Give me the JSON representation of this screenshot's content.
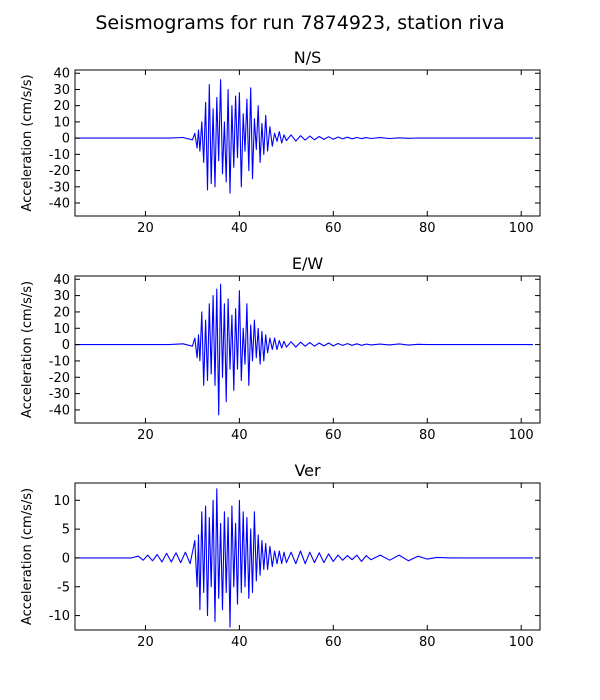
{
  "suptitle": "Seismograms for run 7874923, station riva",
  "colors": {
    "trace": "#0000ff",
    "axes": "#000000",
    "background": "#ffffff"
  },
  "chart_data": [
    {
      "type": "line",
      "title": "N/S",
      "xlabel": "",
      "ylabel": "Acceleration (cm/s/s)",
      "xlim": [
        5,
        104
      ],
      "ylim": [
        -48,
        42
      ],
      "xticks": [
        20,
        40,
        60,
        80,
        100
      ],
      "yticks": [
        -40,
        -30,
        -20,
        -10,
        0,
        10,
        20,
        30,
        40
      ],
      "grid": false,
      "series": [
        {
          "x": [
            5,
            25,
            28,
            30,
            30.5,
            31,
            31.3,
            31.6,
            32,
            32.4,
            32.8,
            33.2,
            33.6,
            34,
            34.4,
            34.8,
            35.2,
            35.6,
            36,
            36.4,
            36.8,
            37.2,
            37.6,
            38,
            38.4,
            38.8,
            39.2,
            39.6,
            40,
            40.4,
            40.8,
            41.2,
            41.6,
            42,
            42.4,
            42.8,
            43.2,
            43.6,
            44,
            44.4,
            44.8,
            45.2,
            45.6,
            46,
            46.5,
            47,
            47.5,
            48,
            48.5,
            49,
            49.5,
            50,
            51,
            52,
            53,
            54,
            55,
            56,
            57,
            58,
            59,
            60,
            61,
            62,
            63,
            64,
            65,
            66,
            67,
            68,
            70,
            72,
            74,
            76,
            78,
            80,
            85,
            90,
            95,
            102.5
          ],
          "values": [
            0,
            0,
            0.4,
            -1,
            3,
            -6,
            5,
            -8,
            10,
            -15,
            22,
            -32,
            33,
            -28,
            18,
            -30,
            25,
            -14,
            36,
            -22,
            10,
            -27,
            30,
            -34,
            20,
            -18,
            26,
            -12,
            28,
            -30,
            15,
            -8,
            24,
            -20,
            31,
            -25,
            12,
            -7,
            20,
            -15,
            9,
            -10,
            14,
            -8,
            7,
            -5,
            3,
            -2,
            4,
            -3,
            2,
            -1.5,
            2,
            -1.8,
            1.5,
            -1.2,
            1.3,
            -1,
            1,
            -0.8,
            0.9,
            -0.7,
            0.7,
            -0.5,
            0.6,
            -0.4,
            0.4,
            -0.3,
            0.3,
            -0.2,
            0.3,
            -0.2,
            0.2,
            -0.1,
            0.1,
            0,
            0,
            0,
            0,
            0
          ]
        }
      ]
    },
    {
      "type": "line",
      "title": "E/W",
      "xlabel": "",
      "ylabel": "Acceleration (cm/s/s)",
      "xlim": [
        5,
        104
      ],
      "ylim": [
        -48,
        42
      ],
      "xticks": [
        20,
        40,
        60,
        80,
        100
      ],
      "yticks": [
        -40,
        -30,
        -20,
        -10,
        0,
        10,
        20,
        30,
        40
      ],
      "grid": false,
      "series": [
        {
          "x": [
            5,
            25,
            28,
            30,
            30.5,
            31,
            31.3,
            31.6,
            32,
            32.4,
            32.8,
            33.2,
            33.6,
            34,
            34.4,
            34.8,
            35.2,
            35.6,
            36,
            36.4,
            36.8,
            37.2,
            37.6,
            38,
            38.4,
            38.8,
            39.2,
            39.6,
            40,
            40.4,
            40.8,
            41.2,
            41.6,
            42,
            42.4,
            42.8,
            43.2,
            43.6,
            44,
            44.4,
            44.8,
            45.2,
            45.6,
            46,
            46.5,
            47,
            47.5,
            48,
            48.5,
            49,
            49.5,
            50,
            51,
            52,
            53,
            54,
            55,
            56,
            57,
            58,
            59,
            60,
            61,
            62,
            63,
            64,
            65,
            66,
            67,
            68,
            70,
            72,
            74,
            76,
            78,
            80,
            85,
            90,
            95,
            102.5
          ],
          "values": [
            0,
            0,
            0.5,
            -1,
            4,
            -8,
            6,
            -10,
            20,
            -25,
            15,
            -22,
            25,
            -18,
            30,
            -25,
            34,
            -43,
            37,
            -20,
            25,
            -35,
            28,
            -15,
            18,
            -28,
            22,
            -15,
            33,
            -22,
            10,
            -12,
            25,
            -25,
            12,
            -10,
            15,
            -8,
            10,
            -12,
            8,
            -10,
            6,
            -5,
            4,
            -3,
            4,
            -3,
            2.5,
            -2,
            2,
            -1.5,
            1.8,
            -1.5,
            1.5,
            -1,
            1.2,
            -1,
            1,
            -0.8,
            1,
            -0.8,
            0.7,
            -0.5,
            0.6,
            -0.4,
            0.5,
            -0.4,
            0.3,
            -0.2,
            0.3,
            -0.2,
            0.4,
            -0.3,
            0.2,
            0,
            0,
            0,
            0,
            0
          ]
        }
      ]
    },
    {
      "type": "line",
      "title": "Ver",
      "xlabel": "",
      "ylabel": "Acceleration (cm/s/s)",
      "xlim": [
        5,
        104
      ],
      "ylim": [
        -12.5,
        13
      ],
      "xticks": [
        20,
        40,
        60,
        80,
        100
      ],
      "yticks": [
        -10,
        -5,
        0,
        5,
        10
      ],
      "grid": false,
      "series": [
        {
          "x": [
            5,
            17,
            18.5,
            19.5,
            20.5,
            21.5,
            22.5,
            23.5,
            24.5,
            25.5,
            26.5,
            27.5,
            28.5,
            29.5,
            30.5,
            31,
            31.3,
            31.6,
            32,
            32.4,
            32.8,
            33.2,
            33.6,
            34,
            34.4,
            34.8,
            35.2,
            35.6,
            36,
            36.4,
            36.8,
            37.2,
            37.6,
            38,
            38.4,
            38.8,
            39.2,
            39.6,
            40,
            40.4,
            40.8,
            41.2,
            41.6,
            42,
            42.4,
            42.8,
            43.2,
            43.6,
            44,
            44.4,
            44.8,
            45.2,
            45.6,
            46,
            46.5,
            47,
            47.5,
            48,
            48.5,
            49,
            49.5,
            50,
            51,
            52,
            53,
            54,
            55,
            56,
            57,
            58,
            59,
            60,
            61,
            62,
            63,
            64,
            65,
            66,
            67,
            68,
            70,
            72,
            74,
            76,
            78,
            80,
            82,
            85,
            90,
            95,
            102.5
          ],
          "values": [
            0,
            0,
            0.3,
            -0.4,
            0.5,
            -0.5,
            0.6,
            -0.7,
            0.8,
            -0.7,
            0.9,
            -0.8,
            1,
            -1,
            3,
            -5,
            4,
            -9,
            8,
            -6,
            9,
            -10,
            7,
            -5,
            10,
            -11,
            12,
            -7,
            6,
            -9,
            8,
            -6,
            7,
            -12,
            9,
            -5,
            6,
            -8,
            10,
            -6,
            8,
            -5,
            7,
            -7,
            5,
            -6,
            8,
            -4,
            4,
            -3,
            3,
            -2,
            2.5,
            -2,
            2,
            -1.5,
            1.2,
            -1,
            1.2,
            -1,
            1,
            -0.8,
            1,
            -1,
            1.2,
            -1,
            1,
            -0.8,
            0.9,
            -0.8,
            0.7,
            -0.6,
            0.5,
            -0.4,
            0.4,
            -0.3,
            0.5,
            -0.6,
            0.4,
            -0.3,
            0.5,
            -0.4,
            0.5,
            -0.5,
            0.3,
            -0.2,
            0.1,
            0,
            0,
            0,
            0
          ]
        }
      ]
    }
  ]
}
